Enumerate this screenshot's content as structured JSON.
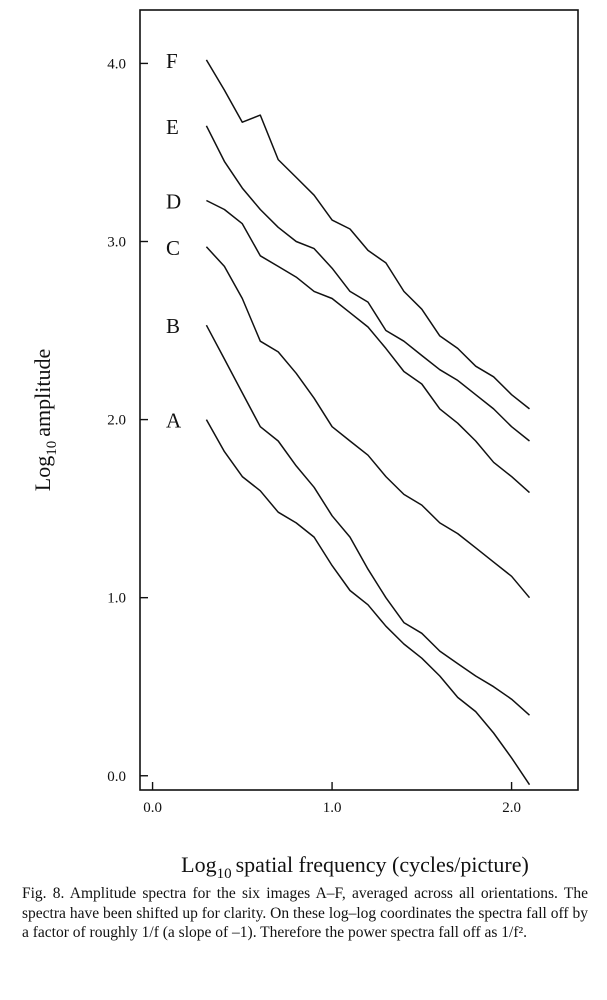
{
  "chart_data": {
    "type": "line",
    "x_label": {
      "base": "Log",
      "subscript": "10",
      "text": "spatial frequency  (cycles/picture)"
    },
    "y_label": {
      "base": "Log",
      "subscript": "10",
      "text": "amplitude"
    },
    "caption": "Fig. 8.  Amplitude spectra for the six images A–F, averaged across all orientations.  The spectra have been shifted up for clarity.  On these log–log coordinates the spectra fall off by a factor of roughly 1/f (a slope of –1).  Therefore the power spectra fall off as 1/f².",
    "x": [
      0.3,
      0.4,
      0.5,
      0.6,
      0.7,
      0.8,
      0.9,
      1.0,
      1.1,
      1.2,
      1.3,
      1.4,
      1.5,
      1.6,
      1.7,
      1.8,
      1.9,
      2.0,
      2.1
    ],
    "xlim": [
      -0.07,
      2.37
    ],
    "ylim": [
      -0.08,
      4.3
    ],
    "xticks": [
      {
        "value": 0,
        "label": "0.0"
      },
      {
        "value": 1,
        "label": "1.0"
      },
      {
        "value": 2,
        "label": "2.0"
      }
    ],
    "yticks": [
      {
        "value": 0,
        "label": "0.0"
      },
      {
        "value": 1,
        "label": "1.0"
      },
      {
        "value": 2,
        "label": "2.0"
      },
      {
        "value": 3,
        "label": "3.0"
      },
      {
        "value": 4,
        "label": "4.0"
      }
    ],
    "grid": false,
    "series": [
      {
        "name": "A",
        "color": "#111111",
        "values": [
          2.0,
          1.82,
          1.68,
          1.6,
          1.48,
          1.42,
          1.34,
          1.18,
          1.04,
          0.96,
          0.84,
          0.74,
          0.66,
          0.56,
          0.44,
          0.36,
          0.24,
          0.1,
          -0.05
        ]
      },
      {
        "name": "B",
        "color": "#111111",
        "values": [
          2.53,
          2.34,
          2.15,
          1.96,
          1.88,
          1.74,
          1.62,
          1.46,
          1.34,
          1.16,
          1.0,
          0.86,
          0.8,
          0.7,
          0.63,
          0.56,
          0.5,
          0.43,
          0.34
        ]
      },
      {
        "name": "C",
        "color": "#111111",
        "values": [
          2.97,
          2.86,
          2.68,
          2.44,
          2.38,
          2.26,
          2.12,
          1.96,
          1.88,
          1.8,
          1.68,
          1.58,
          1.52,
          1.42,
          1.36,
          1.28,
          1.2,
          1.12,
          1.0
        ]
      },
      {
        "name": "D",
        "color": "#111111",
        "values": [
          3.23,
          3.18,
          3.1,
          2.92,
          2.86,
          2.8,
          2.72,
          2.68,
          2.6,
          2.52,
          2.4,
          2.27,
          2.2,
          2.06,
          1.98,
          1.88,
          1.76,
          1.68,
          1.59
        ]
      },
      {
        "name": "E",
        "color": "#111111",
        "values": [
          3.65,
          3.45,
          3.3,
          3.18,
          3.08,
          3.0,
          2.96,
          2.85,
          2.72,
          2.66,
          2.5,
          2.44,
          2.36,
          2.28,
          2.22,
          2.14,
          2.06,
          1.96,
          1.88
        ]
      },
      {
        "name": "F",
        "color": "#111111",
        "values": [
          4.02,
          3.85,
          3.67,
          3.71,
          3.46,
          3.36,
          3.26,
          3.12,
          3.07,
          2.95,
          2.88,
          2.72,
          2.62,
          2.47,
          2.4,
          2.3,
          2.24,
          2.14,
          2.06
        ]
      }
    ]
  }
}
